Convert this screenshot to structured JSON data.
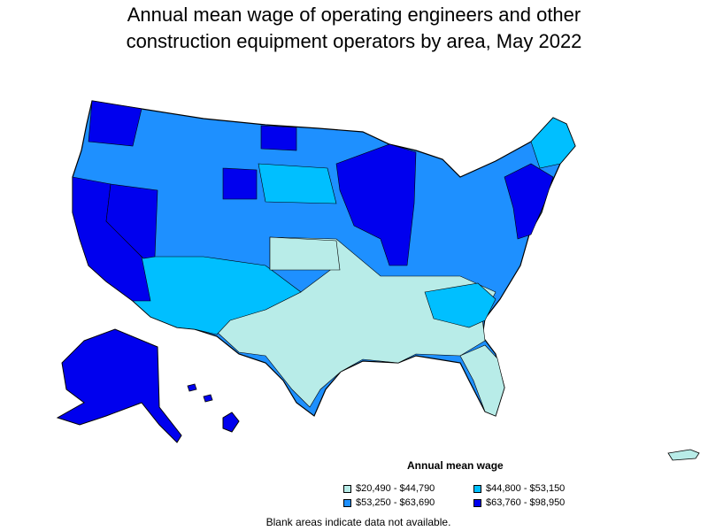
{
  "title_line1": "Annual mean wage of operating engineers and other",
  "title_line2": "construction equipment operators by area, May 2022",
  "legend": {
    "title": "Annual mean wage",
    "items": [
      {
        "label": "$20,490 - $44,790",
        "color": "#b8ece8"
      },
      {
        "label": "$44,800 - $53,150",
        "color": "#00bfff"
      },
      {
        "label": "$53,250 - $63,690",
        "color": "#1e90ff"
      },
      {
        "label": "$63,760 - $98,950",
        "color": "#0000ee"
      }
    ]
  },
  "note": "Blank areas indicate data not available."
}
